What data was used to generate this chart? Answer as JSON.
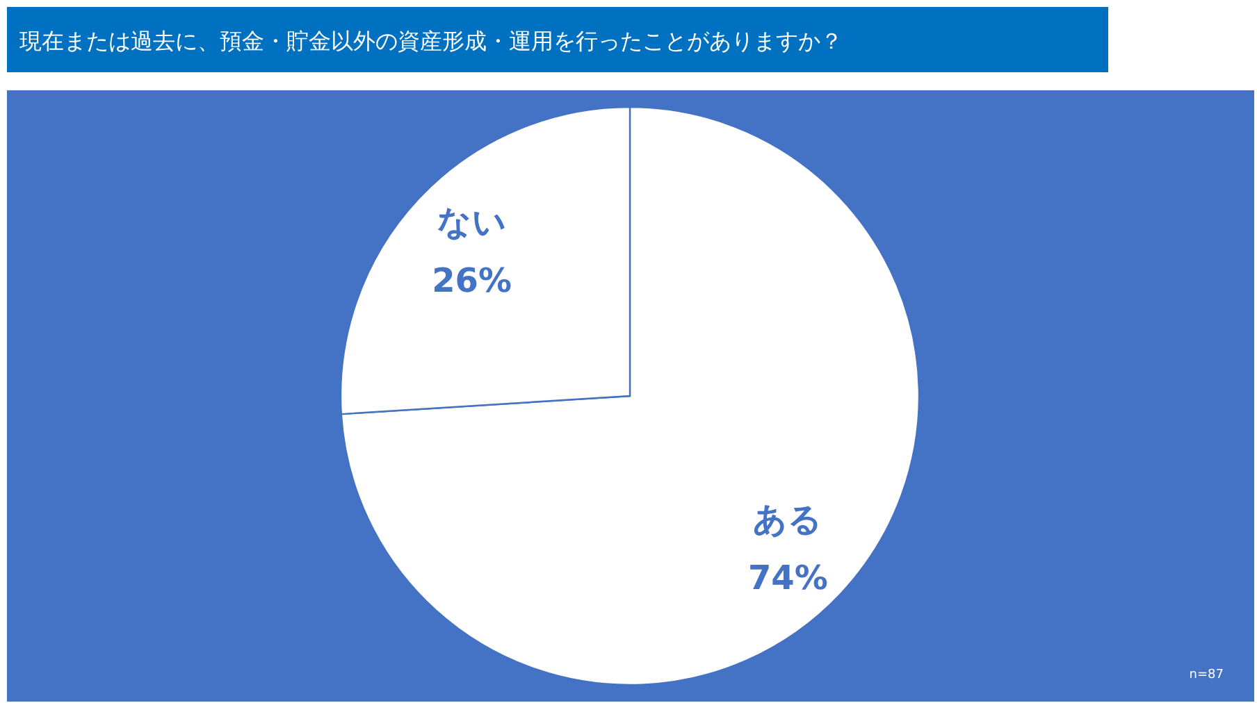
{
  "chart_data": {
    "type": "pie",
    "title": "現在または過去に、預金・貯金以外の資産形成・運用を行ったことがありますか？",
    "categories": [
      "ある",
      "ない"
    ],
    "values": [
      74,
      26
    ],
    "value_labels": [
      "74%",
      "26%"
    ],
    "colors": [
      "#ffffff",
      "#ffffff"
    ],
    "annotations": [
      "n=87"
    ]
  }
}
